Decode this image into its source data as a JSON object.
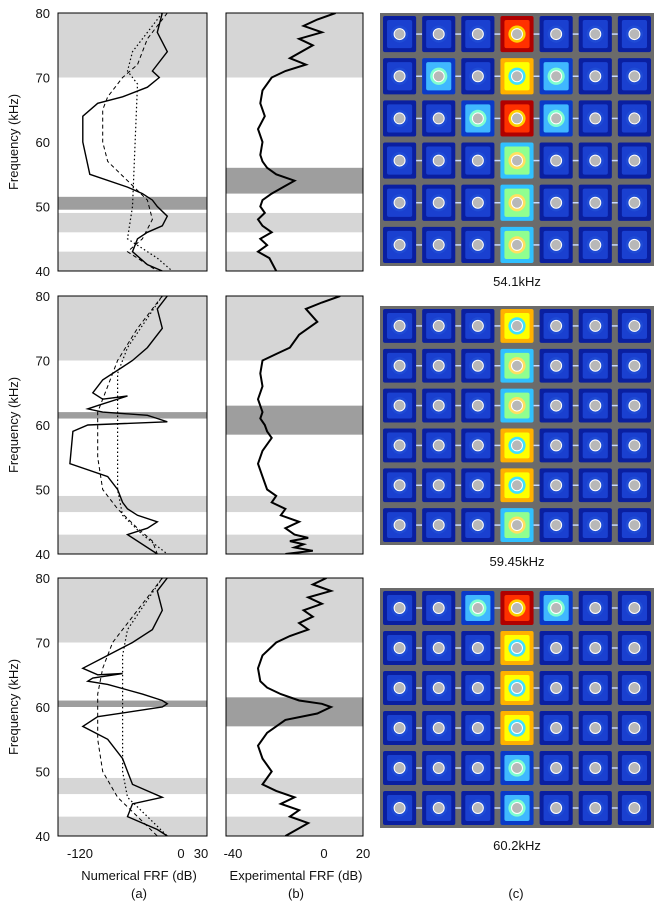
{
  "figure": {
    "rows": [
      {
        "y_label": "Frequency (kHz)",
        "mode_caption": "54.1kHz"
      },
      {
        "y_label": "Frequency (kHz)",
        "mode_caption": "59.45kHz"
      },
      {
        "y_label": "Frequency (kHz)",
        "mode_caption": "60.2kHz"
      }
    ],
    "column_a": {
      "xlabel": "Numerical FRF (dB)",
      "panel_letter": "(a)",
      "x_ticks": [
        "-120",
        "0",
        "30"
      ]
    },
    "column_b": {
      "xlabel": "Experimental FRF (dB)",
      "panel_letter": "(b)",
      "x_ticks": [
        "-40",
        "0",
        "20"
      ]
    },
    "column_c": {
      "panel_letter": "(c)"
    },
    "y_ticks": [
      "80",
      "70",
      "60",
      "50",
      "40"
    ]
  },
  "chart_data": [
    {
      "type": "line",
      "row": 1,
      "panel": "a",
      "xlim": [
        -120,
        30
      ],
      "ylim": [
        40,
        80
      ],
      "bands_light": [
        [
          70,
          80
        ],
        [
          46,
          49
        ],
        [
          40,
          43
        ]
      ],
      "bands_dark": [
        [
          49.5,
          51.5
        ]
      ],
      "series": [
        {
          "style": "solid",
          "x": [
            -15,
            -20,
            -10,
            -25,
            -18,
            -30,
            -55,
            -80,
            -95,
            -95,
            -88,
            -50,
            -35,
            -25,
            -20,
            -10,
            -15,
            -30,
            -40,
            -45,
            -30,
            -15
          ],
          "y": [
            80,
            77,
            74,
            71,
            70,
            68.5,
            67,
            66,
            64,
            60,
            55,
            53,
            52,
            51,
            50,
            48.5,
            47,
            46,
            45,
            43,
            41,
            40
          ]
        },
        {
          "style": "dashed",
          "x": [
            -10,
            -30,
            -40,
            -55,
            -70,
            -75,
            -75,
            -70,
            -50,
            -30,
            -25,
            -35,
            -50,
            -20
          ],
          "y": [
            80,
            76,
            72,
            70,
            67,
            65,
            60,
            57,
            54,
            51,
            48,
            45,
            43,
            40
          ]
        },
        {
          "style": "dotted",
          "x": [
            -15,
            -45,
            -50,
            -40,
            -45,
            -48,
            -50,
            -20,
            -5
          ],
          "y": [
            80,
            74,
            71,
            69,
            50,
            47,
            45,
            42,
            40
          ]
        }
      ]
    },
    {
      "type": "line",
      "row": 1,
      "panel": "b",
      "xlim": [
        -40,
        20
      ],
      "ylim": [
        40,
        80
      ],
      "bands_light": [
        [
          70,
          80
        ],
        [
          46,
          49
        ],
        [
          40,
          43
        ]
      ],
      "bands_dark": [
        [
          52,
          56
        ]
      ],
      "series": [
        {
          "style": "solid",
          "x": [
            8,
            0,
            -6,
            2,
            -8,
            -2,
            -12,
            -5,
            -14,
            -20,
            -24,
            -25,
            -23,
            -26,
            -24,
            -25,
            -24,
            -22,
            -18,
            -10,
            -15,
            -20,
            -24,
            -25,
            -23,
            -26,
            -24,
            -20,
            -25,
            -22,
            -26,
            -21,
            -18
          ],
          "y": [
            80,
            79,
            78,
            77,
            76,
            75,
            73,
            72,
            71,
            70,
            68,
            66,
            64,
            62,
            60,
            58,
            57,
            56,
            55,
            54,
            53,
            52,
            51,
            50,
            49,
            48,
            47,
            46,
            45,
            44,
            43,
            42,
            40
          ]
        }
      ]
    },
    {
      "type": "line",
      "row": 2,
      "panel": "a",
      "xlim": [
        -120,
        30
      ],
      "ylim": [
        40,
        80
      ],
      "bands_light": [
        [
          70,
          80
        ],
        [
          46.5,
          49
        ],
        [
          40,
          43
        ]
      ],
      "bands_dark": [
        [
          61,
          62
        ]
      ],
      "series": [
        {
          "style": "solid",
          "x": [
            -10,
            -20,
            -15,
            -30,
            -45,
            -55,
            -75,
            -85,
            -75,
            -50,
            -80,
            -90,
            -75,
            -30,
            -20,
            -10,
            -90,
            -105,
            -108,
            -70,
            -60,
            -55,
            -50,
            -40,
            -20,
            -30,
            -50,
            -20
          ],
          "y": [
            80,
            78,
            75,
            72,
            70,
            69,
            67,
            65,
            64,
            64.5,
            63,
            62.5,
            62,
            61.5,
            61,
            60.5,
            60,
            59,
            54,
            52,
            50,
            48,
            47,
            46,
            45,
            44,
            43,
            40
          ]
        },
        {
          "style": "dashed",
          "x": [
            -15,
            -40,
            -60,
            -70,
            -80,
            -80,
            -75,
            -60,
            -40,
            -25,
            -20
          ],
          "y": [
            80,
            75,
            70,
            66,
            62,
            55,
            50,
            47,
            44,
            42,
            40
          ]
        },
        {
          "style": "dotted",
          "x": [
            -15,
            -50,
            -60,
            -60,
            -55,
            -35,
            -10
          ],
          "y": [
            80,
            72,
            68,
            50,
            46,
            43,
            40
          ]
        }
      ]
    },
    {
      "type": "line",
      "row": 2,
      "panel": "b",
      "xlim": [
        -40,
        20
      ],
      "ylim": [
        40,
        80
      ],
      "bands_light": [
        [
          70,
          80
        ],
        [
          46.5,
          49
        ],
        [
          40,
          43
        ]
      ],
      "bands_dark": [
        [
          58.5,
          63
        ]
      ],
      "series": [
        {
          "style": "solid",
          "x": [
            10,
            2,
            -5,
            0,
            -8,
            -12,
            -18,
            -24,
            -25,
            -24,
            -26,
            -24,
            -25,
            -23,
            -22,
            -20,
            -24,
            -26,
            -24,
            -22,
            -18,
            -20,
            -14,
            -16,
            -8,
            -14,
            -10,
            -4,
            -12,
            -6,
            -10,
            -2,
            -14
          ],
          "y": [
            80,
            79,
            78,
            76,
            74,
            72,
            71,
            70,
            68,
            66,
            64,
            62,
            61,
            60,
            59,
            58,
            56,
            54,
            52,
            50,
            49,
            48,
            47,
            46,
            45,
            44,
            43,
            42.5,
            42,
            41.5,
            41,
            40.5,
            40
          ]
        }
      ]
    },
    {
      "type": "line",
      "row": 3,
      "panel": "a",
      "xlim": [
        -120,
        30
      ],
      "ylim": [
        40,
        80
      ],
      "bands_light": [
        [
          70,
          80
        ],
        [
          46.5,
          49
        ],
        [
          40,
          43
        ]
      ],
      "bands_dark": [
        [
          60,
          61
        ]
      ],
      "series": [
        {
          "style": "solid",
          "x": [
            -10,
            -20,
            -15,
            -25,
            -45,
            -70,
            -95,
            -80,
            -55,
            -85,
            -90,
            -70,
            -35,
            -15,
            -10,
            -15,
            -80,
            -95,
            -70,
            -55,
            -50,
            -45,
            -30,
            -15,
            -45,
            -50,
            -20,
            -10
          ],
          "y": [
            80,
            78,
            75,
            72,
            70,
            68,
            66,
            65,
            65.2,
            64.5,
            64,
            63.5,
            62,
            61,
            60.5,
            60,
            58.5,
            57,
            55,
            52,
            50,
            48,
            47,
            46,
            45,
            43,
            41,
            40
          ]
        },
        {
          "style": "dashed",
          "x": [
            -15,
            -40,
            -65,
            -75,
            -80,
            -80,
            -75,
            -60,
            -40,
            -20
          ],
          "y": [
            80,
            75,
            70,
            66,
            62,
            55,
            50,
            46,
            43,
            40
          ]
        },
        {
          "style": "dotted",
          "x": [
            -15,
            -50,
            -55,
            -55,
            -50,
            -30,
            -10
          ],
          "y": [
            80,
            72,
            68,
            50,
            46,
            43,
            40
          ]
        }
      ]
    },
    {
      "type": "line",
      "row": 3,
      "panel": "b",
      "xlim": [
        -40,
        20
      ],
      "ylim": [
        40,
        80
      ],
      "bands_light": [
        [
          70,
          80
        ],
        [
          46.5,
          49
        ],
        [
          40,
          43
        ]
      ],
      "bands_dark": [
        [
          57,
          61.5
        ]
      ],
      "series": [
        {
          "style": "solid",
          "x": [
            4,
            -2,
            6,
            -4,
            2,
            -6,
            -2,
            -8,
            -4,
            -12,
            -18,
            -24,
            -26,
            -25,
            -22,
            -16,
            -8,
            2,
            6,
            0,
            -14,
            -22,
            -26,
            -24,
            -20,
            -24,
            -18,
            -10,
            -16,
            -8,
            -12,
            -4,
            -14
          ],
          "y": [
            80,
            79,
            78,
            77,
            76,
            75,
            74,
            73,
            72,
            71,
            70,
            68,
            66,
            64,
            63,
            62,
            61,
            60.5,
            60,
            59,
            58,
            56,
            54,
            52,
            50,
            48,
            47,
            46,
            45,
            44,
            43,
            42,
            40
          ]
        }
      ]
    }
  ]
}
